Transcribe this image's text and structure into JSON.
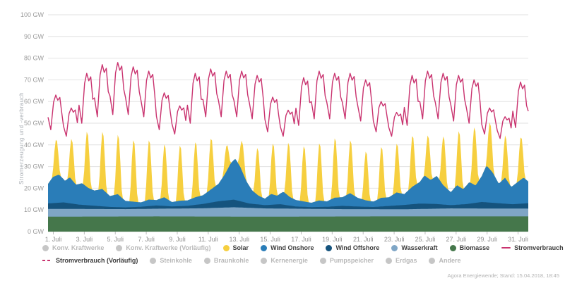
{
  "footer": {
    "source": "Agora Energiewende; Stand: 15.04.2018, 18:45"
  },
  "axes": {
    "y_title": "Stromerzeugung und -verbrauch",
    "y_ticks": {
      "values": [
        0,
        10,
        20,
        30,
        40,
        50,
        60,
        70,
        80,
        90,
        100
      ],
      "labels": [
        "0 GW",
        "10 GW",
        "20 GW",
        "30 GW",
        "40 GW",
        "50 GW",
        "60 GW",
        "70 GW",
        "80 GW",
        "90 GW",
        "100 GW"
      ]
    },
    "x_ticks": {
      "days": [
        1,
        3,
        5,
        7,
        9,
        11,
        13,
        15,
        17,
        19,
        21,
        23,
        25,
        27,
        29,
        31
      ],
      "labels": [
        "1. Juli",
        "3. Juli",
        "5. Juli",
        "7. Juli",
        "9. Juli",
        "11. Juli",
        "13. Juli",
        "15. Juli",
        "17. Juli",
        "19. Juli",
        "21. Juli",
        "23. Juli",
        "25. Juli",
        "27. Juli",
        "29. Juli",
        "31. Juli"
      ]
    }
  },
  "colors": {
    "solar": "#f6cf3f",
    "wind_onshore": "#2a7db8",
    "wind_offshore": "#15537d",
    "wasserkraft": "#7fa6c6",
    "biomasse": "#45774b",
    "stromverbrauch": "#c9336f",
    "grid": "#e2e2e2",
    "axis_text": "#9b9b9b",
    "inactive_dot": "#c6c6c6"
  },
  "legend": {
    "row1": [
      {
        "label": "Konv. Kraftwerke",
        "marker": "dot",
        "color": "#c6c6c6",
        "active": false
      },
      {
        "label": "Konv. Kraftwerke (Vorläufig)",
        "marker": "dot",
        "color": "#c6c6c6",
        "active": false
      },
      {
        "label": "Solar",
        "marker": "dot",
        "color": "#f6cf3f",
        "active": true
      },
      {
        "label": "Wind Onshore",
        "marker": "dot",
        "color": "#2a7db8",
        "active": true
      },
      {
        "label": "Wind Offshore",
        "marker": "dot",
        "color": "#15537d",
        "active": true
      },
      {
        "label": "Wasserkraft",
        "marker": "dot",
        "color": "#7fa6c6",
        "active": true
      },
      {
        "label": "Biomasse",
        "marker": "dot",
        "color": "#45774b",
        "active": true
      },
      {
        "label": "Stromverbrauch",
        "marker": "line",
        "color": "#c9336f",
        "active": true
      }
    ],
    "row2": [
      {
        "label": "Stromverbrauch (Vorläufig)",
        "marker": "dashed",
        "color": "#c9336f",
        "active": true
      },
      {
        "label": "Steinkohle",
        "marker": "dot",
        "color": "#c6c6c6",
        "active": false
      },
      {
        "label": "Braunkohle",
        "marker": "dot",
        "color": "#c6c6c6",
        "active": false
      },
      {
        "label": "Kernenergie",
        "marker": "dot",
        "color": "#c6c6c6",
        "active": false
      },
      {
        "label": "Pumpspeicher",
        "marker": "dot",
        "color": "#c6c6c6",
        "active": false
      },
      {
        "label": "Erdgas",
        "marker": "dot",
        "color": "#c6c6c6",
        "active": false
      },
      {
        "label": "Andere",
        "marker": "dot",
        "color": "#c6c6c6",
        "active": false
      }
    ]
  },
  "chart_data": {
    "type": "area",
    "unit": "GW",
    "title": "",
    "xlabel": "",
    "ylabel": "Stromerzeugung und -verbrauch",
    "x_range_days": [
      1,
      32
    ],
    "ylim": [
      0,
      100
    ],
    "grid": true,
    "stack_order": [
      "Biomasse",
      "Wasserkraft",
      "Wind Offshore",
      "Wind Onshore",
      "Solar"
    ],
    "line_on_top": "Stromverbrauch",
    "series": {
      "biomasse_breakpoints": [
        [
          1,
          6.9
        ],
        [
          8,
          7.0
        ],
        [
          15,
          6.9
        ],
        [
          22,
          7.0
        ],
        [
          32,
          7.0
        ]
      ],
      "wasserkraft_breakpoints": [
        [
          1,
          3.6
        ],
        [
          6,
          3.4
        ],
        [
          11,
          3.8
        ],
        [
          13,
          4.3
        ],
        [
          15,
          3.8
        ],
        [
          20,
          3.4
        ],
        [
          24,
          3.3
        ],
        [
          27,
          3.7
        ],
        [
          32,
          3.6
        ]
      ],
      "wind_offshore_breakpoints": [
        [
          1,
          2.5
        ],
        [
          2,
          3
        ],
        [
          3,
          2
        ],
        [
          4,
          1.5
        ],
        [
          5,
          1
        ],
        [
          6,
          0.8
        ],
        [
          7,
          1
        ],
        [
          8,
          1.5
        ],
        [
          9,
          1
        ],
        [
          10,
          1.2
        ],
        [
          11,
          2
        ],
        [
          12,
          3
        ],
        [
          13,
          3.5
        ],
        [
          14,
          2
        ],
        [
          15,
          1.5
        ],
        [
          16,
          2
        ],
        [
          17,
          1
        ],
        [
          18,
          0.8
        ],
        [
          19,
          1
        ],
        [
          20,
          1.5
        ],
        [
          21,
          1.2
        ],
        [
          22,
          1
        ],
        [
          23,
          1.5
        ],
        [
          24,
          2
        ],
        [
          25,
          2.5
        ],
        [
          26,
          2.2
        ],
        [
          27,
          1.5
        ],
        [
          28,
          2
        ],
        [
          29,
          3
        ],
        [
          30,
          2.5
        ],
        [
          31,
          2
        ],
        [
          32,
          2.5
        ]
      ],
      "wind_onshore_breakpoints": [
        [
          1,
          9
        ],
        [
          1.3,
          12
        ],
        [
          1.7,
          13
        ],
        [
          2.1,
          10
        ],
        [
          2.4,
          12
        ],
        [
          2.8,
          9
        ],
        [
          3.2,
          10
        ],
        [
          3.6,
          8
        ],
        [
          4,
          7
        ],
        [
          4.5,
          8
        ],
        [
          5,
          5
        ],
        [
          5.5,
          6
        ],
        [
          6,
          3
        ],
        [
          6.5,
          2.5
        ],
        [
          7,
          2
        ],
        [
          7.5,
          3
        ],
        [
          8,
          2.5
        ],
        [
          8.5,
          4
        ],
        [
          9,
          2
        ],
        [
          9.5,
          2.5
        ],
        [
          10,
          2.5
        ],
        [
          10.5,
          3.5
        ],
        [
          11,
          4
        ],
        [
          11.5,
          6
        ],
        [
          12,
          8
        ],
        [
          12.4,
          12
        ],
        [
          12.8,
          17
        ],
        [
          13.1,
          19
        ],
        [
          13.4,
          16
        ],
        [
          13.8,
          10
        ],
        [
          14.2,
          6
        ],
        [
          14.6,
          4
        ],
        [
          15,
          3
        ],
        [
          15.4,
          5
        ],
        [
          15.8,
          4
        ],
        [
          16.2,
          6
        ],
        [
          16.6,
          4
        ],
        [
          17,
          3
        ],
        [
          17.5,
          2.5
        ],
        [
          18,
          2
        ],
        [
          18.5,
          3
        ],
        [
          19,
          2.5
        ],
        [
          19.5,
          4
        ],
        [
          20,
          4
        ],
        [
          20.5,
          6
        ],
        [
          21,
          4
        ],
        [
          21.5,
          3
        ],
        [
          22,
          2.5
        ],
        [
          22.5,
          4
        ],
        [
          23,
          4
        ],
        [
          23.5,
          6
        ],
        [
          24,
          5
        ],
        [
          24.5,
          8
        ],
        [
          25,
          10
        ],
        [
          25.3,
          13
        ],
        [
          25.7,
          11
        ],
        [
          26.1,
          13
        ],
        [
          26.5,
          9
        ],
        [
          27,
          6
        ],
        [
          27.4,
          9
        ],
        [
          27.8,
          7
        ],
        [
          28.2,
          10
        ],
        [
          28.6,
          8
        ],
        [
          29,
          12
        ],
        [
          29.3,
          17
        ],
        [
          29.7,
          14
        ],
        [
          30.1,
          9
        ],
        [
          30.5,
          12
        ],
        [
          30.9,
          8
        ],
        [
          31.3,
          10
        ],
        [
          31.7,
          12
        ],
        [
          32,
          10
        ]
      ],
      "solar_daily_peaks": [
        17,
        19,
        26,
        27,
        28,
        29,
        28,
        25,
        26,
        26,
        24,
        12,
        14,
        22,
        24,
        25,
        26,
        27,
        28,
        25,
        23,
        24,
        23,
        24,
        20,
        23,
        26,
        27,
        22,
        20,
        20
      ],
      "stromverbrauch_daily_min_max": [
        [
          47,
          63
        ],
        [
          44,
          57
        ],
        [
          50,
          73
        ],
        [
          53,
          77
        ],
        [
          54,
          78
        ],
        [
          54,
          76
        ],
        [
          53,
          74
        ],
        [
          47,
          64
        ],
        [
          45,
          58
        ],
        [
          50,
          73
        ],
        [
          53,
          75
        ],
        [
          53,
          74
        ],
        [
          53,
          74
        ],
        [
          52,
          72
        ],
        [
          46,
          62
        ],
        [
          44,
          56
        ],
        [
          49,
          71
        ],
        [
          52,
          74
        ],
        [
          52,
          73
        ],
        [
          52,
          73
        ],
        [
          51,
          70
        ],
        [
          46,
          60
        ],
        [
          44,
          55
        ],
        [
          49,
          72
        ],
        [
          52,
          74
        ],
        [
          52,
          73
        ],
        [
          51,
          72
        ],
        [
          50,
          70
        ],
        [
          45,
          57
        ],
        [
          43,
          53
        ],
        [
          48,
          69
        ]
      ]
    }
  }
}
